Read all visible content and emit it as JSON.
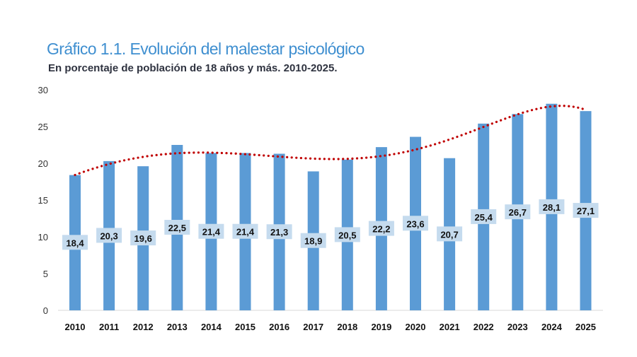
{
  "chart_data": {
    "type": "bar",
    "title": "Gráfico 1.1. Evolución del malestar psicológico",
    "subtitle": "En porcentaje de población de 18 años y más. 2010-2025.",
    "categories": [
      "2010",
      "2011",
      "2012",
      "2013",
      "2014",
      "2015",
      "2016",
      "2017",
      "2018",
      "2019",
      "2020",
      "2021",
      "2022",
      "2023",
      "2024",
      "2025"
    ],
    "values": [
      18.4,
      20.3,
      19.6,
      22.5,
      21.4,
      21.4,
      21.3,
      18.9,
      20.5,
      22.2,
      23.6,
      20.7,
      25.4,
      26.7,
      28.1,
      27.1
    ],
    "data_labels": [
      "18,4",
      "20,3",
      "19,6",
      "22,5",
      "21,4",
      "21,4",
      "21,3",
      "18,9",
      "20,5",
      "22,2",
      "23,6",
      "20,7",
      "25,4",
      "26,7",
      "28,1",
      "27,1"
    ],
    "ylim": [
      0,
      30
    ],
    "yticks": [
      0,
      5,
      10,
      15,
      20,
      25,
      30
    ],
    "grid": false,
    "trendline": "polynomial, dotted",
    "colors": {
      "bar": "#5b9bd5",
      "label_bg": "#c5dbee",
      "trend": "#c00000",
      "title": "#3f8fd0"
    }
  }
}
